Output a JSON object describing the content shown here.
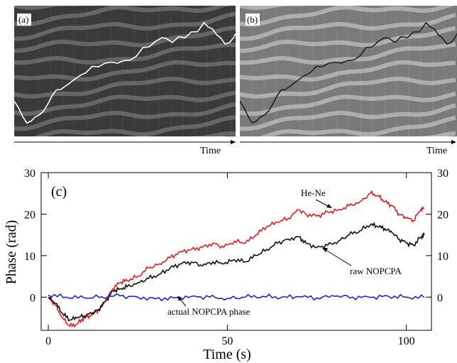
{
  "panels": [
    {
      "label": "(a)",
      "time_label": "Time",
      "background": "#3a3a3a",
      "fringe_color": "#8a8a8a",
      "trace_color": "#ffffff"
    },
    {
      "label": "(b)",
      "time_label": "Time",
      "background": "#7a7a7a",
      "fringe_color": "#d8d8d8",
      "trace_color": "#222222"
    }
  ],
  "chart_data": {
    "type": "line",
    "panel_label": "(c)",
    "xlabel": "Time (s)",
    "ylabel": "Phase (rad)",
    "xlim": [
      -2,
      107
    ],
    "ylim": [
      -8,
      30
    ],
    "xticks": [
      0,
      50,
      100
    ],
    "yticks": [
      0,
      10,
      20,
      30
    ],
    "grid": false,
    "series": [
      {
        "name": "He-Ne",
        "color": "#e02020",
        "x": [
          0,
          2,
          4,
          6,
          8,
          10,
          12,
          14,
          16,
          18,
          20,
          22,
          25,
          28,
          31,
          34,
          37,
          40,
          43,
          46,
          49,
          52,
          55,
          58,
          61,
          64,
          67,
          70,
          72,
          75,
          78,
          81,
          84,
          87,
          90,
          92,
          94,
          96,
          98,
          100,
          102,
          104,
          105
        ],
        "y": [
          0,
          -2,
          -5,
          -7,
          -6.5,
          -5,
          -4.5,
          -3,
          -1,
          2,
          3.5,
          4,
          5,
          7,
          8,
          9.5,
          11,
          11.5,
          12,
          13,
          12,
          13.5,
          13,
          15,
          17,
          18,
          19,
          21,
          20,
          19.5,
          20.5,
          21,
          22,
          23,
          25,
          24.5,
          23,
          22,
          20,
          19,
          18.5,
          21,
          21.5
        ]
      },
      {
        "name": "raw NOPCPA",
        "color": "#111111",
        "x": [
          0,
          2,
          4,
          6,
          8,
          10,
          12,
          14,
          16,
          18,
          20,
          22,
          25,
          28,
          31,
          34,
          37,
          40,
          43,
          46,
          49,
          52,
          55,
          58,
          61,
          64,
          67,
          70,
          72,
          75,
          78,
          81,
          84,
          87,
          90,
          92,
          94,
          96,
          98,
          100,
          102,
          104,
          105
        ],
        "y": [
          0,
          -1.5,
          -4,
          -5.5,
          -5,
          -4.5,
          -4,
          -3,
          -1,
          1.5,
          2,
          2.5,
          3.5,
          4.5,
          5.5,
          7,
          8,
          8.5,
          7.5,
          8.5,
          8,
          9,
          8.5,
          10,
          11.5,
          13,
          14,
          14.5,
          13,
          12,
          12.5,
          13.5,
          15,
          16,
          17.5,
          17,
          16.5,
          15.5,
          14,
          13,
          12.5,
          14.5,
          15
        ]
      },
      {
        "name": "actual NOPCPA phase",
        "color": "#2020e0",
        "x": [
          0,
          5,
          10,
          15,
          20,
          25,
          30,
          35,
          40,
          45,
          50,
          55,
          60,
          65,
          70,
          75,
          80,
          85,
          90,
          95,
          100,
          105
        ],
        "y": [
          0.5,
          0,
          -0.2,
          0.1,
          0.3,
          0,
          -0.4,
          -0.2,
          0.2,
          0,
          -0.3,
          0,
          0.2,
          -0.1,
          0.1,
          -0.2,
          0.2,
          0,
          -0.1,
          0.2,
          0,
          -0.1
        ]
      }
    ],
    "annotations": [
      "He-Ne",
      "raw NOPCPA",
      "actual NOPCPA phase"
    ]
  }
}
